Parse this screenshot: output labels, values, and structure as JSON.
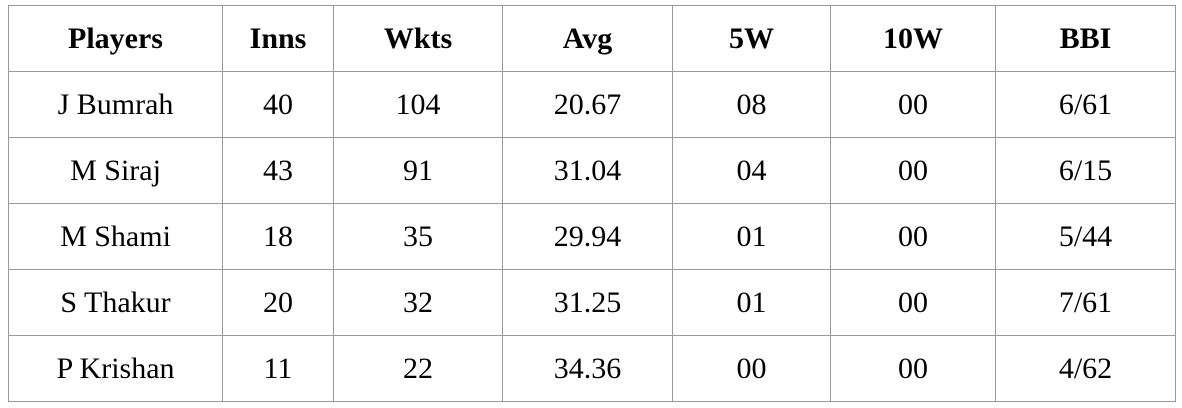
{
  "table": {
    "header": [
      "Players",
      "Inns",
      "Wkts",
      "Avg",
      "5W",
      "10W",
      "BBI"
    ],
    "rows": [
      [
        "J Bumrah",
        "40",
        "104",
        "20.67",
        "08",
        "00",
        "6/61"
      ],
      [
        "M Siraj",
        "43",
        "91",
        "31.04",
        "04",
        "00",
        "6/15"
      ],
      [
        "M Shami",
        "18",
        "35",
        "29.94",
        "01",
        "00",
        "5/44"
      ],
      [
        "S Thakur",
        "20",
        "32",
        "31.25",
        "01",
        "00",
        "7/61"
      ],
      [
        "P Krishan",
        "11",
        "22",
        "34.36",
        "00",
        "00",
        "4/62"
      ]
    ]
  }
}
